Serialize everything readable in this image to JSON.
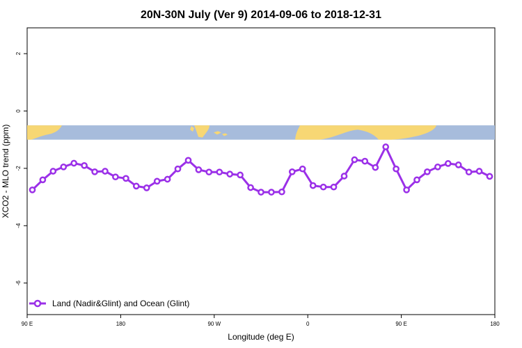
{
  "chart_data": {
    "type": "line",
    "title": "20N-30N July (Ver 9)   2014-09-06 to 2018-12-31",
    "xlabel": "Longitude (deg E)",
    "ylabel": "XCO2 - MLO trend (ppm)",
    "x_ticks": [
      {
        "value": 90,
        "label": "90 E"
      },
      {
        "value": 180,
        "label": "180"
      },
      {
        "value": 270,
        "label": "90 W"
      },
      {
        "value": 360,
        "label": "0"
      },
      {
        "value": 450,
        "label": "90 E"
      },
      {
        "value": 540,
        "label": "180"
      }
    ],
    "y_ticks": [
      2,
      0,
      -2,
      -4,
      -6
    ],
    "xlim": [
      90,
      540
    ],
    "ylim": [
      -7.1,
      2.9
    ],
    "map_band": {
      "y_top": -0.5,
      "y_bottom": -1.0
    },
    "series": [
      {
        "name": "Land (Nadir&Glint) and Ocean (Glint)",
        "color": "#9b30e8",
        "x": [
          95,
          105,
          115,
          125,
          135,
          145,
          155,
          165,
          175,
          185,
          195,
          205,
          215,
          225,
          235,
          245,
          255,
          265,
          275,
          285,
          295,
          305,
          315,
          325,
          335,
          345,
          355,
          365,
          375,
          385,
          395,
          405,
          415,
          425,
          435,
          445,
          455,
          465,
          475,
          485,
          495,
          505,
          515,
          525,
          535
        ],
        "values": [
          -2.75,
          -2.4,
          -2.1,
          -1.95,
          -1.82,
          -1.9,
          -2.12,
          -2.1,
          -2.3,
          -2.35,
          -2.62,
          -2.68,
          -2.45,
          -2.38,
          -2.02,
          -1.72,
          -2.05,
          -2.13,
          -2.13,
          -2.2,
          -2.23,
          -2.67,
          -2.83,
          -2.83,
          -2.82,
          -2.12,
          -2.02,
          -2.6,
          -2.65,
          -2.65,
          -2.27,
          -1.7,
          -1.75,
          -1.97,
          -1.25,
          -2.02,
          -2.75,
          -2.4,
          -2.12,
          -1.95,
          -1.83,
          -1.88,
          -2.13,
          -2.1,
          -2.28
        ]
      }
    ],
    "legend": {
      "position": "bottom-left"
    },
    "colors": {
      "line": "#9b30e8",
      "land": "#f7d774",
      "ocean": "#a7bcdc"
    }
  }
}
